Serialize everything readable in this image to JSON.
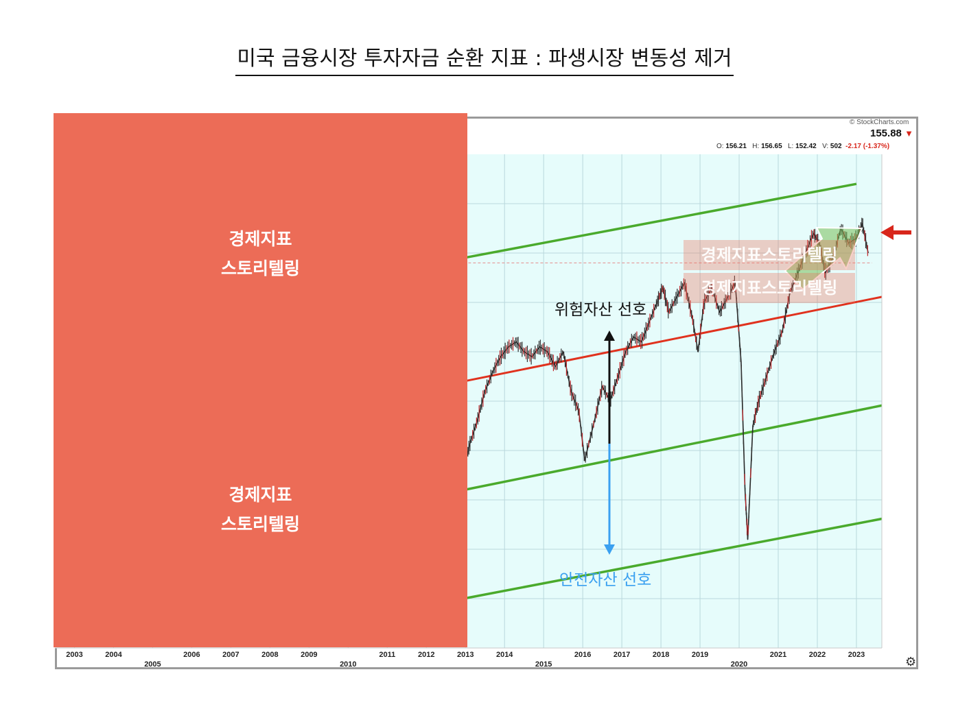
{
  "title": "미국 금융시장 투자자금 순환 지표 : 파생시장 변동성 제거",
  "header": {
    "credit": "© StockCharts.com",
    "last_price": "155.88",
    "down_arrow": "▼",
    "ohlc": {
      "open_label": "O:",
      "open": "156.21",
      "high_label": "H:",
      "high": "156.65",
      "low_label": "L:",
      "low": "152.42",
      "vol_label": "V:",
      "vol": "502",
      "change": "-2.17 (-1.37%)"
    }
  },
  "cover": {
    "top_line1": "경제지표",
    "top_line2": "스토리텔링",
    "bottom_line1": "경제지표",
    "bottom_line2": "스토리텔링"
  },
  "overlays": {
    "label1": "경제지표스토리텔링",
    "label2": "경제지표스토리텔링"
  },
  "annotations": {
    "risk": "위험자산 선호",
    "safe": "안전자산 선호"
  },
  "colors": {
    "channel": "#4aaa2c",
    "trend": "#e0321e",
    "plot_bg": "#e6fcfb",
    "grid": "#b9d8dc",
    "cover": "#ec6c57",
    "safe_arrow": "#3aa0f0",
    "pointer": "#d8261b"
  },
  "icons": {
    "gear": "gear-icon",
    "pointer": "left-arrow-icon"
  },
  "chart_data": {
    "type": "line",
    "x_ticks": [
      "2003",
      "2004",
      "2005",
      "2006",
      "2007",
      "2008",
      "2009",
      "2010",
      "2011",
      "2012",
      "2013",
      "2014",
      "2015",
      "2016",
      "2017",
      "2018",
      "2019",
      "2020",
      "2021",
      "2022",
      "2023"
    ],
    "xlim": [
      2002.5,
      2023.65
    ],
    "ylim": [
      0,
      100
    ],
    "log_scale": false,
    "grid": true,
    "legend": "none",
    "series": [
      {
        "x": [
          2012.95,
          2013.1,
          2013.3,
          2013.5,
          2013.7,
          2013.9,
          2014.1,
          2014.3,
          2014.5,
          2014.7,
          2014.9,
          2015.1,
          2015.3,
          2015.5,
          2015.7,
          2015.9,
          2016.05,
          2016.3,
          2016.5,
          2016.7,
          2016.9,
          2017.1,
          2017.3,
          2017.5,
          2017.7,
          2017.9,
          2018.05,
          2018.2,
          2018.4,
          2018.6,
          2018.8,
          2018.95,
          2019.1,
          2019.3,
          2019.5,
          2019.7,
          2019.9,
          2020.05,
          2020.15,
          2020.22,
          2020.35,
          2020.5,
          2020.7,
          2020.9,
          2021.1,
          2021.3,
          2021.5,
          2021.7,
          2021.9,
          2022.05,
          2022.2,
          2022.4,
          2022.6,
          2022.8,
          2023.0,
          2023.15,
          2023.3
        ],
        "y": [
          36,
          41,
          46,
          52,
          56,
          59,
          61,
          62,
          60,
          59,
          61,
          60,
          57,
          60,
          52,
          48,
          38,
          46,
          53,
          50,
          55,
          60,
          63,
          62,
          66,
          70,
          73,
          68,
          71,
          74,
          67,
          60,
          70,
          73,
          68,
          71,
          74,
          58,
          32,
          22,
          45,
          50,
          55,
          60,
          64,
          72,
          76,
          80,
          84,
          82,
          76,
          79,
          85,
          82,
          83,
          86,
          80
        ]
      }
    ],
    "channel_lines": [
      {
        "x": [
          2012.95,
          2023.0
        ],
        "y": [
          79,
          94
        ]
      },
      {
        "x": [
          2012.95,
          2024.2
        ],
        "y": [
          32,
          50
        ]
      },
      {
        "x": [
          2012.95,
          2024.2
        ],
        "y": [
          10,
          27
        ]
      }
    ],
    "trend_line": {
      "x": [
        2012.95,
        2024.2
      ],
      "y": [
        54,
        72
      ]
    },
    "reference_y": 78
  }
}
